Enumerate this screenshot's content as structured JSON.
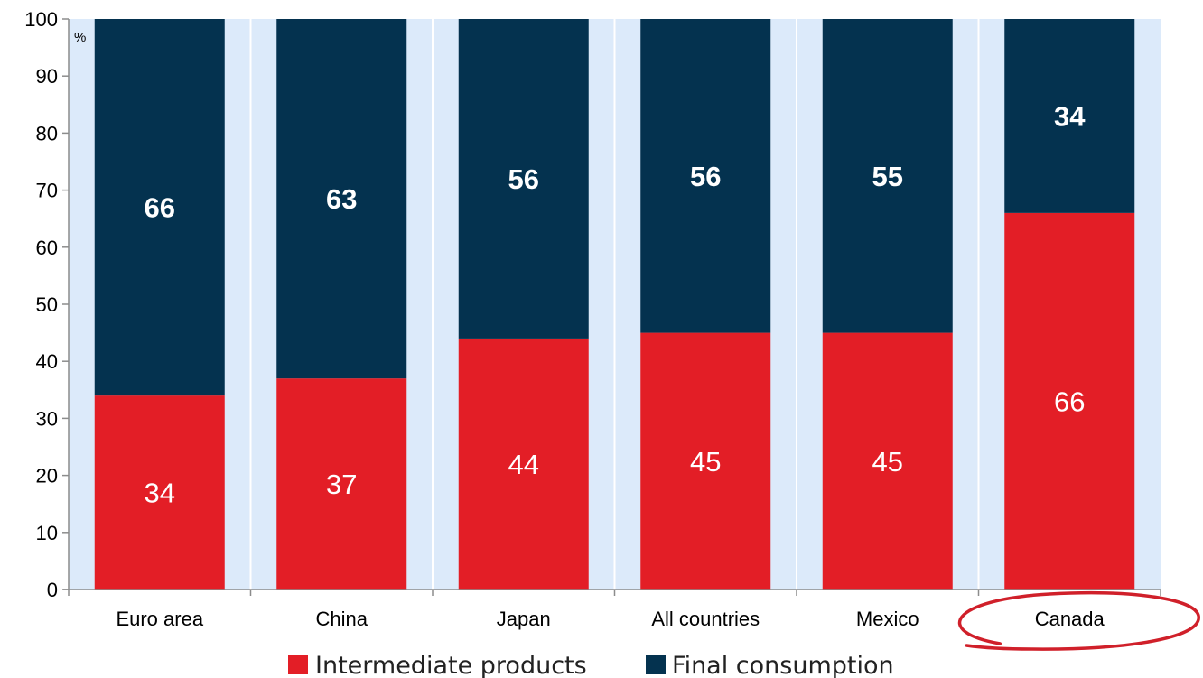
{
  "chart_data": {
    "type": "bar",
    "stacked": true,
    "unit_label": "%",
    "ylim": [
      0,
      100
    ],
    "yticks": [
      0,
      10,
      20,
      30,
      40,
      50,
      60,
      70,
      80,
      90,
      100
    ],
    "categories": [
      "Euro area",
      "China",
      "Japan",
      "All countries",
      "Mexico",
      "Canada"
    ],
    "series": [
      {
        "name": "Intermediate products",
        "values": [
          34,
          37,
          44,
          45,
          45,
          66
        ],
        "labels": [
          "34",
          "37",
          "44",
          "45",
          "45",
          "66"
        ]
      },
      {
        "name": "Final consumption",
        "values": [
          66,
          63,
          56,
          56,
          55,
          34
        ],
        "labels": [
          "66",
          "63",
          "56",
          "56",
          "55",
          "34"
        ]
      }
    ],
    "highlighted_category": "Canada",
    "grid": "vertical-bands",
    "legend_position": "bottom-center"
  },
  "colors": {
    "plot_background": "#dceafa",
    "band_divider": "#ffffff",
    "axis": "#8c8c8c",
    "intermediate": "#e31e26",
    "final": "#04324f",
    "highlight": "#d0202a"
  }
}
